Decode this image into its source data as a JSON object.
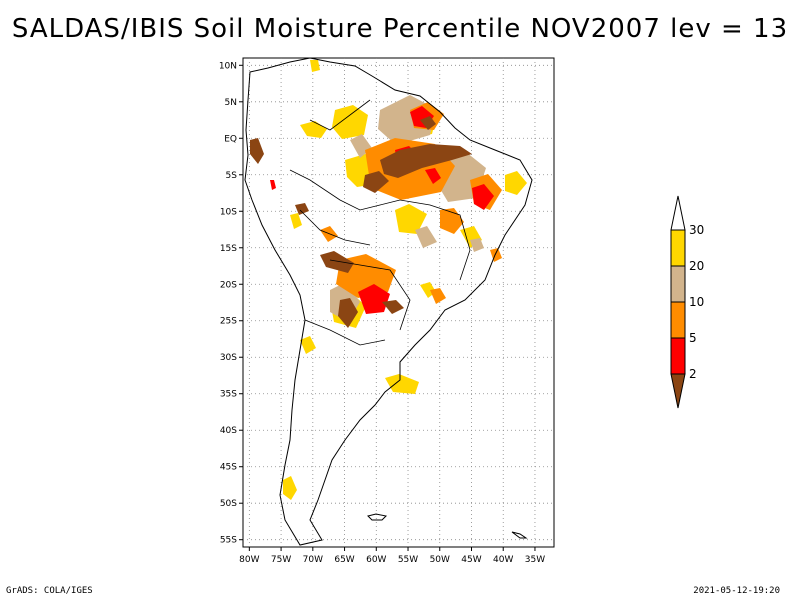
{
  "title": "SALDAS/IBIS Soil Moisture Percentile NOV2007 lev = 13",
  "footer": {
    "left": "GrADS: COLA/IGES",
    "right": "2021-05-12-19:20"
  },
  "map": {
    "region": "South America",
    "lon_range": [
      -81,
      -32
    ],
    "lat_range": [
      -56,
      11
    ],
    "lat_ticks": [
      {
        "value": 10,
        "label": "10N"
      },
      {
        "value": 5,
        "label": "5N"
      },
      {
        "value": 0,
        "label": "EQ"
      },
      {
        "value": -5,
        "label": "5S"
      },
      {
        "value": -10,
        "label": "10S"
      },
      {
        "value": -15,
        "label": "15S"
      },
      {
        "value": -20,
        "label": "20S"
      },
      {
        "value": -25,
        "label": "25S"
      },
      {
        "value": -30,
        "label": "30S"
      },
      {
        "value": -35,
        "label": "35S"
      },
      {
        "value": -40,
        "label": "40S"
      },
      {
        "value": -45,
        "label": "45S"
      },
      {
        "value": -50,
        "label": "50S"
      },
      {
        "value": -55,
        "label": "55S"
      }
    ],
    "lon_ticks": [
      {
        "value": -80,
        "label": "80W"
      },
      {
        "value": -75,
        "label": "75W"
      },
      {
        "value": -70,
        "label": "70W"
      },
      {
        "value": -65,
        "label": "65W"
      },
      {
        "value": -60,
        "label": "60W"
      },
      {
        "value": -55,
        "label": "55W"
      },
      {
        "value": -50,
        "label": "50W"
      },
      {
        "value": -45,
        "label": "45W"
      },
      {
        "value": -40,
        "label": "40W"
      },
      {
        "value": -35,
        "label": "35W"
      }
    ]
  },
  "legend": {
    "bins": [
      {
        "label": "30",
        "color": "#ffffff"
      },
      {
        "label": "20",
        "color": "#ffd700"
      },
      {
        "label": "10",
        "color": "#d2b48c"
      },
      {
        "label": "5",
        "color": "#ff8c00"
      },
      {
        "label": "2",
        "color": "#ff0000"
      },
      {
        "label": "",
        "color": "#8b4513"
      }
    ],
    "labels": [
      "30",
      "20",
      "10",
      "5",
      "2"
    ]
  },
  "colors": {
    "dark_brown": "#8b4513",
    "red": "#ff0000",
    "orange": "#ff8c00",
    "tan": "#d2b48c",
    "gold": "#ffd700",
    "gridline": "#888888"
  }
}
